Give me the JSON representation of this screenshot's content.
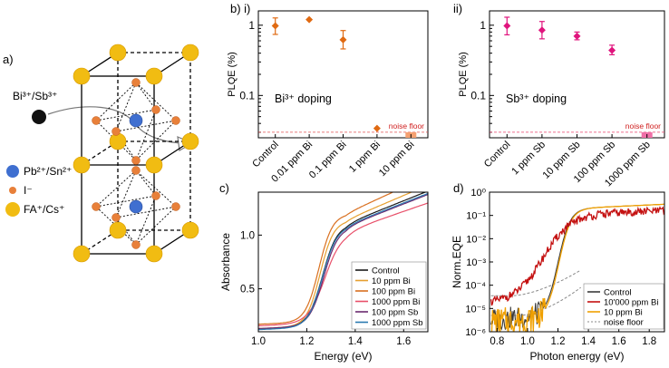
{
  "panel_labels": {
    "a": "a)",
    "b": "b) i)",
    "bii": "ii)",
    "c": "c)",
    "d": "d)"
  },
  "structure": {
    "dopant": "Bi³⁺/Sb³⁺",
    "legend": [
      {
        "label": "Pb²⁺/Sn²⁺",
        "color": "#3f6fd0"
      },
      {
        "label": "I⁻",
        "color": "#e8803a"
      },
      {
        "label": "FA⁺/Cs⁺",
        "color": "#f1bc12"
      }
    ]
  },
  "chart_data": [
    {
      "id": "bi",
      "type": "scatter",
      "title": "",
      "annotation": "Bi³⁺ doping",
      "ylabel": "PLQE (%)",
      "yscale": "log",
      "ylim": [
        0.025,
        1.6
      ],
      "yticks": [
        "1",
        "0.1"
      ],
      "categories": [
        "Control",
        "0.01 ppm Bi",
        "0.1 ppm Bi",
        "1 ppm Bi",
        "10 ppm Bi"
      ],
      "values": [
        0.98,
        1.2,
        0.62,
        0.034,
        null
      ],
      "errors_low": [
        0.74,
        1.2,
        0.46,
        0.034,
        null
      ],
      "errors_high": [
        1.27,
        1.2,
        0.84,
        0.034,
        null
      ],
      "noise_floor": 0.03,
      "noise_label": "noise floor",
      "color": "#e06a12"
    },
    {
      "id": "sb",
      "type": "scatter",
      "title": "",
      "annotation": "Sb³⁺ doping",
      "ylabel": "PLQE (%)",
      "yscale": "log",
      "ylim": [
        0.025,
        1.6
      ],
      "yticks": [
        "1",
        "0.1"
      ],
      "categories": [
        "Control",
        "1 ppm Sb",
        "10 ppm Sb",
        "100 ppm Sb",
        "1000 ppm Sb"
      ],
      "values": [
        0.98,
        0.85,
        0.7,
        0.44,
        null
      ],
      "errors_low": [
        0.73,
        0.64,
        0.62,
        0.38,
        null
      ],
      "errors_high": [
        1.3,
        1.13,
        0.8,
        0.52,
        null
      ],
      "noise_floor": 0.03,
      "noise_label": "noise floor",
      "color": "#e0147d"
    },
    {
      "id": "abs",
      "type": "line",
      "xlabel": "Energy (eV)",
      "ylabel": "Absorbance",
      "xlim": [
        1.0,
        1.7
      ],
      "ylim": [
        0.1,
        1.4
      ],
      "xticks": [
        1.0,
        1.2,
        1.4,
        1.6
      ],
      "yticks": [
        0.5,
        1.0
      ],
      "legend_position": "lower-right",
      "series": [
        {
          "name": "Control",
          "color": "#1a1a1a",
          "y0": 0.125,
          "amp": 0.95,
          "x0": 1.265,
          "w": 0.03,
          "slope": 0.82
        },
        {
          "name": "10 ppm Bi",
          "color": "#e6a030",
          "y0": 0.13,
          "amp": 0.98,
          "x0": 1.255,
          "w": 0.028,
          "slope": 0.88
        },
        {
          "name": "100 ppm Bi",
          "color": "#d97020",
          "y0": 0.17,
          "amp": 1.0,
          "x0": 1.25,
          "w": 0.028,
          "slope": 0.95
        },
        {
          "name": "1000 ppm Bi",
          "color": "#e8506a",
          "y0": 0.155,
          "amp": 0.85,
          "x0": 1.275,
          "w": 0.035,
          "slope": 0.7
        },
        {
          "name": "100 ppm Sb",
          "color": "#6a2a70",
          "y0": 0.13,
          "amp": 0.92,
          "x0": 1.27,
          "w": 0.03,
          "slope": 0.8
        },
        {
          "name": "1000 ppm Sb",
          "color": "#2a7ab0",
          "y0": 0.12,
          "amp": 0.94,
          "x0": 1.265,
          "w": 0.03,
          "slope": 0.8
        }
      ]
    },
    {
      "id": "eqe",
      "type": "line",
      "xlabel": "Photon energy (eV)",
      "ylabel": "Norm.EQE",
      "yscale": "log",
      "xlim": [
        0.75,
        1.9
      ],
      "ylim": [
        1e-06,
        1.0
      ],
      "xticks": [
        0.8,
        1.0,
        1.2,
        1.4,
        1.6,
        1.8
      ],
      "yticks": [
        "10⁰",
        "10⁻¹",
        "10⁻²",
        "10⁻³",
        "10⁻⁴",
        "10⁻⁵",
        "10⁻⁶"
      ],
      "legend_position": "lower-right",
      "series": [
        {
          "name": "Control",
          "color": "#3a3a3a"
        },
        {
          "name": "10'000 ppm Bi",
          "color": "#c41010"
        },
        {
          "name": "10 ppm Bi",
          "color": "#f0a000"
        },
        {
          "name": "noise floor",
          "color": "#888888"
        }
      ]
    }
  ]
}
